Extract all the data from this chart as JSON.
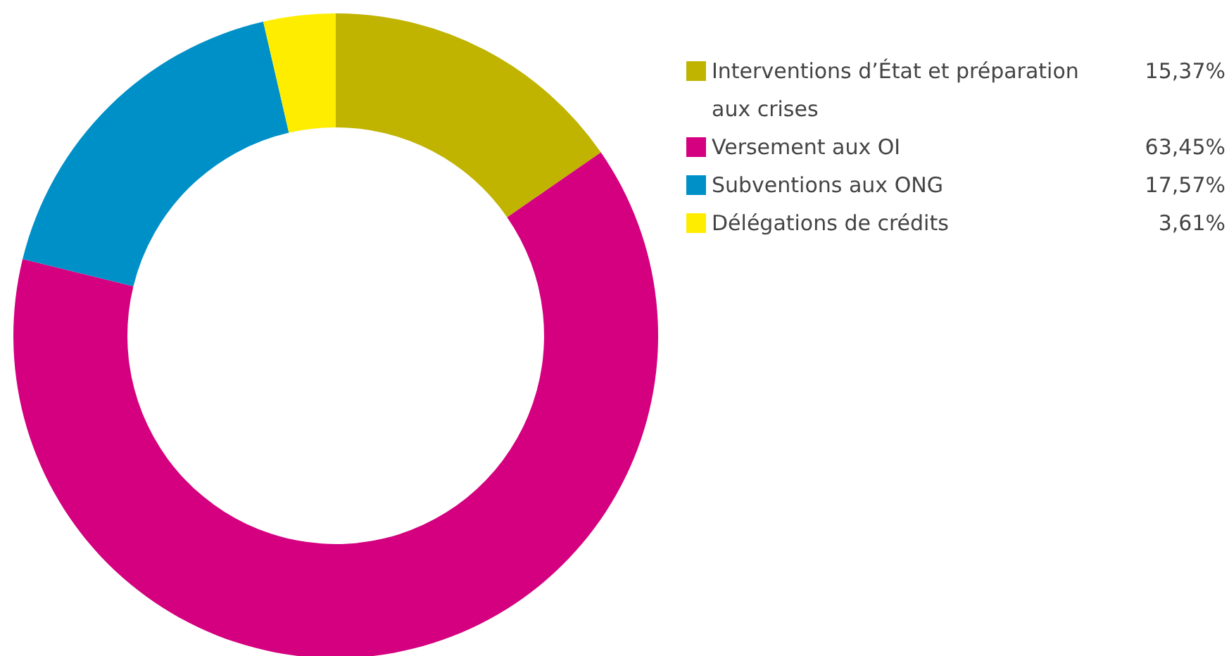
{
  "chart_data": {
    "type": "donut",
    "categories": [
      "Interventions d’État et préparation\naux crises",
      "Versement aux OI",
      "Subventions aux ONG",
      "Délégations de crédits"
    ],
    "values": [
      15.37,
      63.45,
      17.57,
      3.61
    ],
    "value_labels": [
      "15,37%",
      "63,45%",
      "17,57%",
      "3,61%"
    ],
    "colors": [
      "#c0b400",
      "#d4007f",
      "#0090c8",
      "#ffed00"
    ],
    "legend": "right"
  }
}
